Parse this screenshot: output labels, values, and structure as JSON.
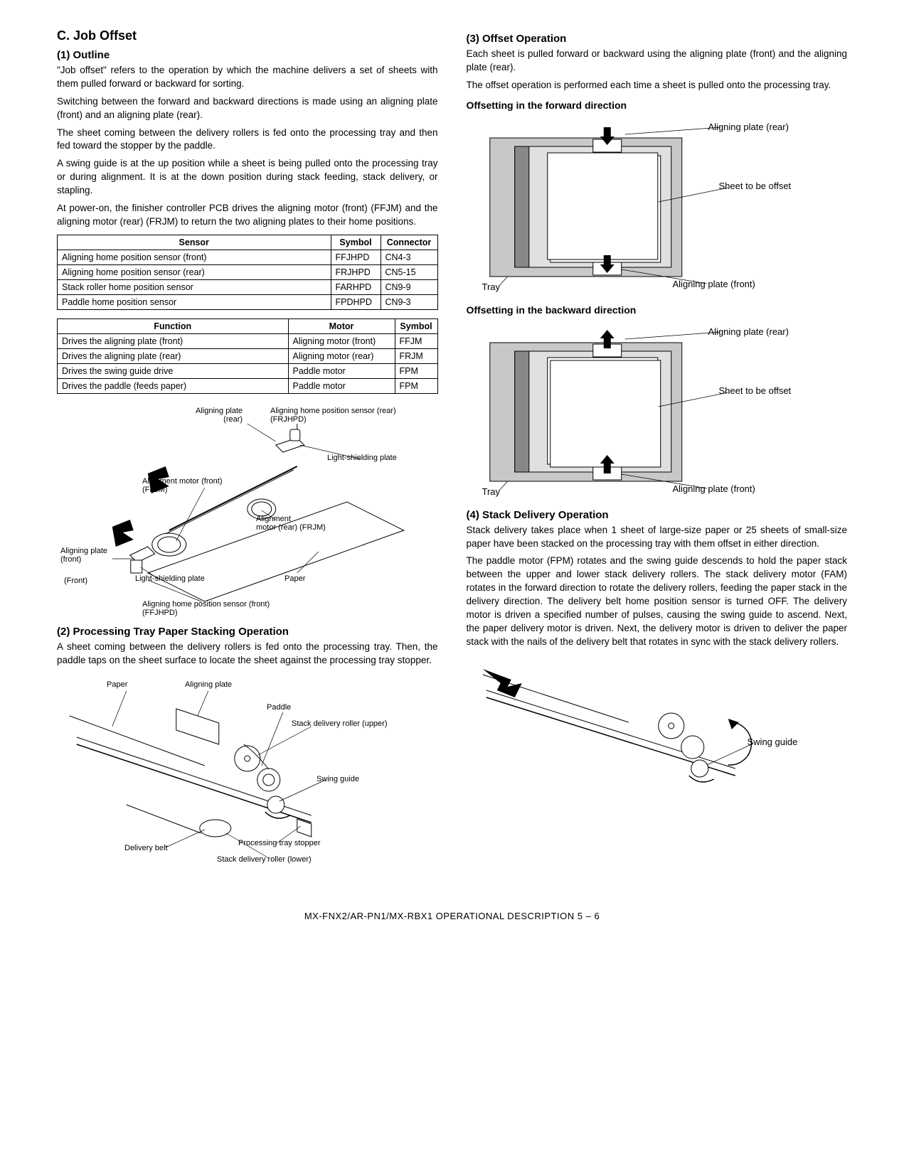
{
  "left": {
    "sectionC": "C.  Job Offset",
    "s1": "(1)   Outline",
    "p1": "\"Job offset\" refers to the operation by which the machine delivers a set of sheets with them pulled forward or backward for sorting.",
    "p2": "Switching between the forward and backward directions is made using an aligning plate (front) and an aligning plate (rear).",
    "p3": "The sheet coming between the delivery rollers is fed onto the processing tray and then fed toward the stopper by the paddle.",
    "p4": "A swing guide is at the up position while a sheet is being pulled onto the processing tray or during alignment. It is at the down position during stack feeding, stack delivery, or stapling.",
    "p5": "At power-on, the finisher controller PCB drives the aligning motor (front) (FFJM) and the aligning motor (rear) (FRJM) to return the two aligning plates to their home positions.",
    "table1": {
      "headers": [
        "Sensor",
        "Symbol",
        "Connector"
      ],
      "rows": [
        [
          "Aligning home position sensor (front)",
          "FFJHPD",
          "CN4-3"
        ],
        [
          "Aligning home position sensor (rear)",
          "FRJHPD",
          "CN5-15"
        ],
        [
          "Stack roller home position sensor",
          "FARHPD",
          "CN9-9"
        ],
        [
          "Paddle home position sensor",
          "FPDHPD",
          "CN9-3"
        ]
      ]
    },
    "table2": {
      "headers": [
        "Function",
        "Motor",
        "Symbol"
      ],
      "rows": [
        [
          "Drives the aligning plate (front)",
          "Aligning motor (front)",
          "FFJM"
        ],
        [
          "Drives the aligning plate (rear)",
          "Aligning motor (rear)",
          "FRJM"
        ],
        [
          "Drives the swing guide drive",
          "Paddle motor",
          "FPM"
        ],
        [
          "Drives the paddle (feeds paper)",
          "Paddle motor",
          "FPM"
        ]
      ]
    },
    "diag1": {
      "aligning_plate_rear": "Aligning plate\n(rear)",
      "sensor_rear": "Aligning home position sensor (rear)\n(FRJHPD)",
      "light_shield": "Light-shielding plate",
      "motor_front": "Alignment motor (front)\n(FFJM)",
      "motor_rear": "Alignment\nmotor (rear) (FRJM)",
      "aligning_plate_front": "Aligning plate\n(front)",
      "front": "(Front)",
      "light_shield2": "Light-shielding plate",
      "paper": "Paper",
      "sensor_front": "Aligning home position sensor (front)\n(FFJHPD)"
    },
    "s2": "(2)   Processing Tray Paper Stacking Operation",
    "p6": "A sheet coming between the delivery rollers is fed onto the processing tray. Then, the paddle taps on the sheet surface to locate the sheet against the processing tray stopper.",
    "diag2": {
      "paper": "Paper",
      "aligning_plate": "Aligning plate",
      "paddle": "Paddle",
      "roller_upper": "Stack delivery roller (upper)",
      "swing_guide": "Swing guide",
      "delivery_belt": "Delivery belt",
      "stopper": "Processing tray stopper",
      "roller_lower": "Stack delivery roller (lower)"
    }
  },
  "right": {
    "s3": "(3)   Offset Operation",
    "p7": "Each sheet is pulled forward or backward using the aligning plate (front) and the aligning plate (rear).",
    "p8": "The offset operation is performed each time a sheet is pulled onto the processing tray.",
    "fwd_title": "Offsetting in the forward direction",
    "diag3": {
      "plate_rear": "Aligning plate (rear)",
      "sheet": "Sheet to be offset",
      "tray": "Tray",
      "plate_front": "Aligning plate (front)"
    },
    "bwd_title": "Offsetting in the backward direction",
    "diag4": {
      "plate_rear": "Aligning plate (rear)",
      "sheet": "Sheet to be offset",
      "tray": "Tray",
      "plate_front": "Aligning plate (front)"
    },
    "s4": "(4)   Stack Delivery Operation",
    "p9": "Stack delivery takes place when 1 sheet of large-size paper or 25 sheets of small-size paper have been stacked on the processing tray with them offset in either direction.",
    "p10": "The paddle motor (FPM) rotates and the swing guide descends to hold the paper stack between the upper and lower stack delivery rollers. The stack delivery motor (FAM) rotates in the forward direction to rotate the delivery rollers, feeding the paper stack in the delivery direction. The delivery belt home position sensor is turned OFF. The delivery motor is driven a specified number of pulses, causing the swing guide to ascend. Next, the paper delivery motor is driven. Next, the delivery motor is driven to deliver the paper stack with the nails of the delivery belt that rotates in sync with the stack delivery rollers.",
    "diag5": {
      "swing_guide": "Swing guide"
    }
  },
  "footer": "MX-FNX2/AR-PN1/MX-RBX1  OPERATIONAL DESCRIPTION  5 – 6",
  "colors": {
    "text": "#000000",
    "bg": "#ffffff",
    "fill_gray": "#c8c8c8",
    "fill_lightgray": "#e0e0e0",
    "stroke": "#000000"
  }
}
